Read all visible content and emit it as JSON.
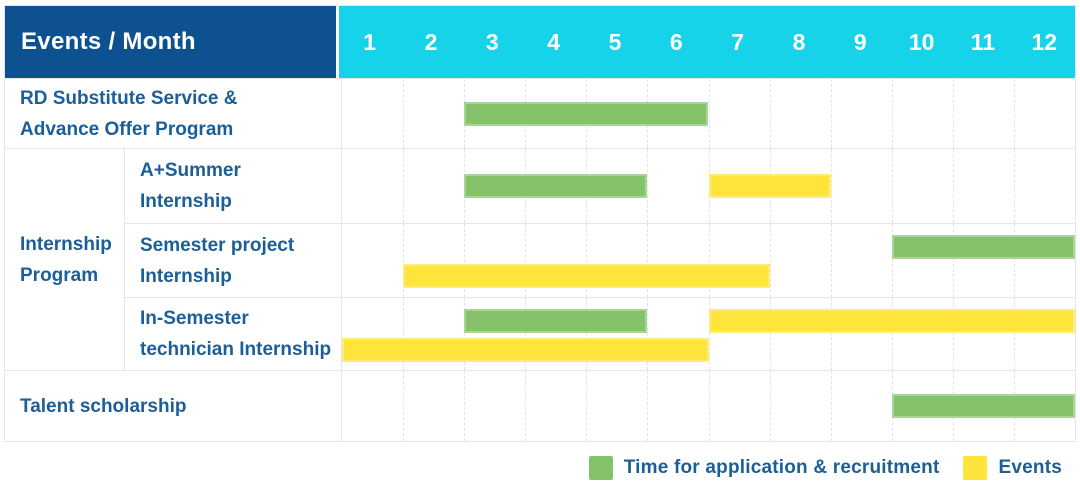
{
  "title": "Events / Month",
  "months": [
    "1",
    "2",
    "3",
    "4",
    "5",
    "6",
    "7",
    "8",
    "9",
    "10",
    "11",
    "12"
  ],
  "colors": {
    "navy": "#0e5190",
    "cyan": "#16d3ea",
    "label_blue": "#1b5e98",
    "green": "#84c36a",
    "yellow": "#ffe43c",
    "grid": "#e6e6e6"
  },
  "group": {
    "label_lines": [
      "Internship",
      "Program"
    ]
  },
  "rows": [
    {
      "label": "RD Substitute Service & Advance Offer Program",
      "label_lines": [
        "RD Substitute Service &",
        "Advance Offer Program"
      ],
      "bars": [
        {
          "color": "green",
          "start": 3,
          "end": 6,
          "lane": "center"
        }
      ]
    },
    {
      "label": "A+Summer Internship",
      "label_lines": [
        "A+Summer",
        "Internship"
      ],
      "bars": [
        {
          "color": "green",
          "start": 3,
          "end": 5,
          "lane": "center"
        },
        {
          "color": "yellow",
          "start": 7,
          "end": 8,
          "lane": "center"
        }
      ]
    },
    {
      "label": "Semester project Internship",
      "label_lines": [
        "Semester project",
        "Internship"
      ],
      "bars": [
        {
          "color": "green",
          "start": 10,
          "end": 12,
          "lane": "top"
        },
        {
          "color": "yellow",
          "start": 2,
          "end": 7,
          "lane": "bottom"
        }
      ]
    },
    {
      "label": "In-Semester technician Internship",
      "label_lines": [
        "In-Semester",
        "technician Internship"
      ],
      "bars": [
        {
          "color": "green",
          "start": 3,
          "end": 5,
          "lane": "top"
        },
        {
          "color": "yellow",
          "start": 7,
          "end": 12,
          "lane": "top"
        },
        {
          "color": "yellow",
          "start": 1,
          "end": 6,
          "lane": "bottom"
        }
      ]
    },
    {
      "label": "Talent scholarship",
      "label_lines": [
        "Talent scholarship"
      ],
      "bars": [
        {
          "color": "green",
          "start": 10,
          "end": 12,
          "lane": "center"
        }
      ]
    }
  ],
  "legend": [
    {
      "color": "green",
      "label": "Time for application & recruitment"
    },
    {
      "color": "yellow",
      "label": "Events"
    }
  ],
  "chart_data": {
    "type": "bar",
    "subtype": "gantt",
    "title": "Events / Month",
    "x_unit": "month",
    "x_ticks": [
      1,
      2,
      3,
      4,
      5,
      6,
      7,
      8,
      9,
      10,
      11,
      12
    ],
    "xlim": [
      1,
      12
    ],
    "grid": "vertical-dashed",
    "legend_position": "bottom-right",
    "series_meaning": {
      "green": "Time for application & recruitment",
      "yellow": "Events"
    },
    "tasks": [
      {
        "row": "RD Substitute Service & Advance Offer Program",
        "group": null,
        "bars": [
          {
            "kind": "application & recruitment",
            "start_month": 3,
            "end_month": 6
          }
        ]
      },
      {
        "row": "A+Summer Internship",
        "group": "Internship Program",
        "bars": [
          {
            "kind": "application & recruitment",
            "start_month": 3,
            "end_month": 5
          },
          {
            "kind": "event",
            "start_month": 7,
            "end_month": 8
          }
        ]
      },
      {
        "row": "Semester project Internship",
        "group": "Internship Program",
        "bars": [
          {
            "kind": "application & recruitment",
            "start_month": 10,
            "end_month": 12
          },
          {
            "kind": "event",
            "start_month": 2,
            "end_month": 7
          }
        ]
      },
      {
        "row": "In-Semester technician Internship",
        "group": "Internship Program",
        "bars": [
          {
            "kind": "application & recruitment",
            "start_month": 3,
            "end_month": 5
          },
          {
            "kind": "event",
            "start_month": 7,
            "end_month": 12
          },
          {
            "kind": "event",
            "start_month": 1,
            "end_month": 6
          }
        ]
      },
      {
        "row": "Talent scholarship",
        "group": null,
        "bars": [
          {
            "kind": "application & recruitment",
            "start_month": 10,
            "end_month": 12
          }
        ]
      }
    ]
  }
}
